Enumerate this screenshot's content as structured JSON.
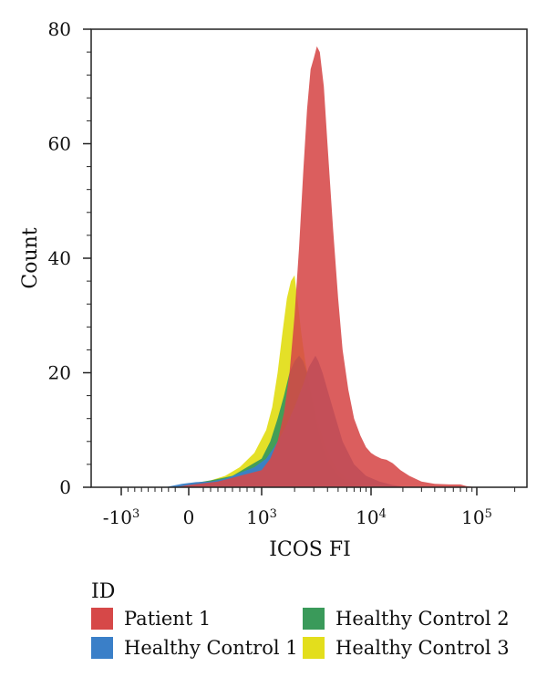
{
  "chart_data": {
    "type": "area",
    "xlabel": "ICOS FI",
    "ylabel": "Count",
    "xscale": "biexponential",
    "xlim": [
      -1300,
      250000
    ],
    "ylim": [
      0,
      80
    ],
    "x_ticks": [
      {
        "value": -1000,
        "base": "-10",
        "exp": "3"
      },
      {
        "value": 0,
        "base": "0",
        "exp": ""
      },
      {
        "value": 1000,
        "base": "10",
        "exp": "3"
      },
      {
        "value": 10000,
        "base": "10",
        "exp": "4"
      },
      {
        "value": 100000,
        "base": "10",
        "exp": "5"
      }
    ],
    "y_ticks": [
      0,
      20,
      40,
      60,
      80
    ],
    "grid": false,
    "legend_title": "ID",
    "legend_position": "bottom",
    "series": [
      {
        "name": "Healthy Control 3",
        "color": "#e3de1c",
        "points": [
          [
            -1300,
            0
          ],
          [
            -200,
            0
          ],
          [
            0,
            0.5
          ],
          [
            300,
            1.2
          ],
          [
            500,
            2
          ],
          [
            700,
            3.5
          ],
          [
            900,
            6
          ],
          [
            1100,
            10
          ],
          [
            1250,
            14
          ],
          [
            1400,
            20
          ],
          [
            1550,
            27
          ],
          [
            1700,
            33
          ],
          [
            1850,
            36
          ],
          [
            2000,
            37
          ],
          [
            2150,
            32
          ],
          [
            2300,
            27
          ],
          [
            2500,
            22
          ],
          [
            2800,
            17
          ],
          [
            3200,
            12
          ],
          [
            3700,
            8
          ],
          [
            4300,
            5
          ],
          [
            5000,
            3
          ],
          [
            6000,
            1.5
          ],
          [
            8000,
            0.5
          ],
          [
            10000,
            0.2
          ],
          [
            15000,
            0
          ],
          [
            250000,
            0
          ]
        ]
      },
      {
        "name": "Healthy Control 2",
        "color": "#3a9a5a",
        "points": [
          [
            -1300,
            0
          ],
          [
            -200,
            0
          ],
          [
            0,
            0.6
          ],
          [
            300,
            1.2
          ],
          [
            600,
            2
          ],
          [
            800,
            3.5
          ],
          [
            1000,
            5
          ],
          [
            1200,
            8
          ],
          [
            1400,
            12
          ],
          [
            1600,
            16
          ],
          [
            1800,
            20
          ],
          [
            2000,
            22
          ],
          [
            2200,
            23
          ],
          [
            2400,
            22
          ],
          [
            2600,
            20
          ],
          [
            2900,
            15
          ],
          [
            3200,
            11
          ],
          [
            3600,
            7
          ],
          [
            4200,
            4
          ],
          [
            5000,
            2
          ],
          [
            6000,
            1
          ],
          [
            8000,
            0.3
          ],
          [
            10000,
            0
          ],
          [
            250000,
            0
          ]
        ]
      },
      {
        "name": "Healthy Control 1",
        "color": "#3a7fc8",
        "points": [
          [
            -1300,
            0
          ],
          [
            -350,
            0
          ],
          [
            -100,
            0.6
          ],
          [
            100,
            0.9
          ],
          [
            300,
            1
          ],
          [
            500,
            1.5
          ],
          [
            700,
            2.5
          ],
          [
            900,
            3.5
          ],
          [
            1100,
            5
          ],
          [
            1300,
            7
          ],
          [
            1500,
            9
          ],
          [
            1700,
            11
          ],
          [
            2000,
            14
          ],
          [
            2400,
            18
          ],
          [
            2700,
            21
          ],
          [
            2900,
            22
          ],
          [
            3100,
            23
          ],
          [
            3300,
            22
          ],
          [
            3600,
            20
          ],
          [
            4000,
            17
          ],
          [
            4600,
            13
          ],
          [
            5500,
            8
          ],
          [
            7000,
            4
          ],
          [
            9000,
            2
          ],
          [
            12000,
            1
          ],
          [
            16000,
            0.4
          ],
          [
            22000,
            0
          ],
          [
            250000,
            0
          ]
        ]
      },
      {
        "name": "Patient 1",
        "color": "#d64848",
        "points": [
          [
            -1300,
            0
          ],
          [
            -200,
            0
          ],
          [
            0,
            0.4
          ],
          [
            400,
            1
          ],
          [
            700,
            2
          ],
          [
            1000,
            3
          ],
          [
            1200,
            5
          ],
          [
            1400,
            8
          ],
          [
            1600,
            13
          ],
          [
            1800,
            20
          ],
          [
            2000,
            30
          ],
          [
            2200,
            42
          ],
          [
            2400,
            55
          ],
          [
            2600,
            66
          ],
          [
            2800,
            73
          ],
          [
            3000,
            75
          ],
          [
            3200,
            77
          ],
          [
            3400,
            76
          ],
          [
            3700,
            70
          ],
          [
            4000,
            60
          ],
          [
            4500,
            45
          ],
          [
            5000,
            33
          ],
          [
            5500,
            24
          ],
          [
            6200,
            17
          ],
          [
            7000,
            12
          ],
          [
            8000,
            9
          ],
          [
            9000,
            7
          ],
          [
            10000,
            6
          ],
          [
            11000,
            5.5
          ],
          [
            12500,
            5
          ],
          [
            14000,
            4.8
          ],
          [
            16000,
            4.2
          ],
          [
            19000,
            3
          ],
          [
            23000,
            2
          ],
          [
            30000,
            1
          ],
          [
            40000,
            0.6
          ],
          [
            55000,
            0.5
          ],
          [
            70000,
            0.5
          ],
          [
            80000,
            0.2
          ],
          [
            100000,
            0
          ],
          [
            250000,
            0
          ]
        ]
      }
    ]
  }
}
